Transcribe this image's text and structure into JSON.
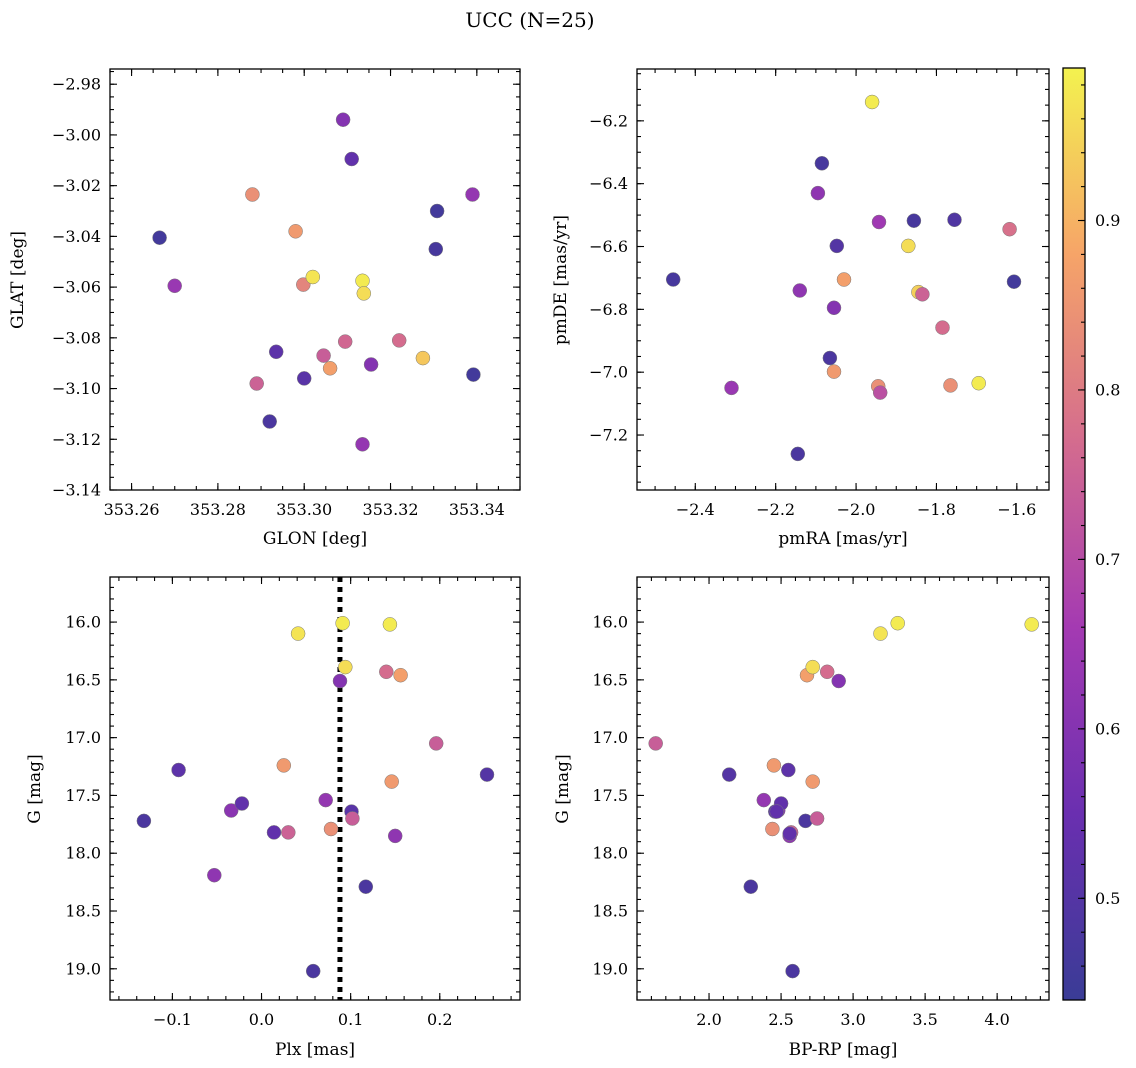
{
  "figure": {
    "title": "UCC (N=25)"
  },
  "chart_data": [
    {
      "type": "scatter",
      "panel": "top-left",
      "xlabel": "GLON [deg]",
      "ylabel": "GLAT [deg]",
      "xlim": [
        353.255,
        353.35
      ],
      "ylim": [
        -3.14,
        -2.974
      ],
      "xticks": [
        353.26,
        353.28,
        353.3,
        353.32,
        353.34
      ],
      "xtick_labels": [
        "353.26",
        "353.28",
        "353.30",
        "353.32",
        "353.34"
      ],
      "yticks": [
        -3.14,
        -3.12,
        -3.1,
        -3.08,
        -3.06,
        -3.04,
        -3.02,
        -3.0,
        -2.98
      ],
      "ytick_labels": [
        "−3.14",
        "−3.12",
        "−3.10",
        "−3.08",
        "−3.06",
        "−3.04",
        "−3.02",
        "−3.00",
        "−2.98"
      ],
      "x_minor": 0.005,
      "y_minor": 0.005,
      "points": [
        {
          "x": 353.2665,
          "y": -3.0405,
          "c": 0.46
        },
        {
          "x": 353.27,
          "y": -3.0595,
          "c": 0.64
        },
        {
          "x": 353.288,
          "y": -3.0235,
          "c": 0.84
        },
        {
          "x": 353.289,
          "y": -3.098,
          "c": 0.75
        },
        {
          "x": 353.292,
          "y": -3.113,
          "c": 0.48
        },
        {
          "x": 353.2935,
          "y": -3.0855,
          "c": 0.52
        },
        {
          "x": 353.298,
          "y": -3.038,
          "c": 0.86
        },
        {
          "x": 353.2998,
          "y": -3.059,
          "c": 0.82
        },
        {
          "x": 353.3,
          "y": -3.096,
          "c": 0.51
        },
        {
          "x": 353.302,
          "y": -3.056,
          "c": 0.97
        },
        {
          "x": 353.3045,
          "y": -3.087,
          "c": 0.74
        },
        {
          "x": 353.306,
          "y": -3.092,
          "c": 0.87
        },
        {
          "x": 353.309,
          "y": -2.994,
          "c": 0.6
        },
        {
          "x": 353.3095,
          "y": -3.0815,
          "c": 0.76
        },
        {
          "x": 353.311,
          "y": -3.0095,
          "c": 0.53
        },
        {
          "x": 353.3135,
          "y": -3.0575,
          "c": 0.98
        },
        {
          "x": 353.3138,
          "y": -3.0625,
          "c": 0.96
        },
        {
          "x": 353.3135,
          "y": -3.122,
          "c": 0.63
        },
        {
          "x": 353.3155,
          "y": -3.0905,
          "c": 0.6
        },
        {
          "x": 353.322,
          "y": -3.081,
          "c": 0.77
        },
        {
          "x": 353.3275,
          "y": -3.088,
          "c": 0.93
        },
        {
          "x": 353.3305,
          "y": -3.045,
          "c": 0.47
        },
        {
          "x": 353.3308,
          "y": -3.03,
          "c": 0.46
        },
        {
          "x": 353.339,
          "y": -3.0235,
          "c": 0.63
        },
        {
          "x": 353.3392,
          "y": -3.0945,
          "c": 0.46
        }
      ]
    },
    {
      "type": "scatter",
      "panel": "top-right",
      "xlabel": "pmRA [mas/yr]",
      "ylabel": "pmDE [mas/yr]",
      "xlim": [
        -2.545,
        -1.52
      ],
      "ylim": [
        -7.375,
        -6.035
      ],
      "xticks": [
        -2.4,
        -2.2,
        -2.0,
        -1.8,
        -1.6
      ],
      "xtick_labels": [
        "−2.4",
        "−2.2",
        "−2.0",
        "−1.8",
        "−1.6"
      ],
      "yticks": [
        -7.2,
        -7.0,
        -6.8,
        -6.6,
        -6.4,
        -6.2
      ],
      "ytick_labels": [
        "−7.2",
        "−7.0",
        "−6.8",
        "−6.6",
        "−6.4",
        "−6.2"
      ],
      "x_minor": 0.05,
      "y_minor": 0.05,
      "points": [
        {
          "x": -2.455,
          "y": -6.705,
          "c": 0.47
        },
        {
          "x": -2.31,
          "y": -7.05,
          "c": 0.64
        },
        {
          "x": -2.145,
          "y": -7.26,
          "c": 0.48
        },
        {
          "x": -2.14,
          "y": -6.74,
          "c": 0.62
        },
        {
          "x": -2.095,
          "y": -6.43,
          "c": 0.62
        },
        {
          "x": -2.085,
          "y": -6.335,
          "c": 0.47
        },
        {
          "x": -2.065,
          "y": -6.955,
          "c": 0.48
        },
        {
          "x": -2.055,
          "y": -6.998,
          "c": 0.86
        },
        {
          "x": -2.055,
          "y": -6.795,
          "c": 0.6
        },
        {
          "x": -2.048,
          "y": -6.598,
          "c": 0.5
        },
        {
          "x": -2.03,
          "y": -6.705,
          "c": 0.87
        },
        {
          "x": -1.96,
          "y": -6.14,
          "c": 0.98
        },
        {
          "x": -1.945,
          "y": -7.045,
          "c": 0.84
        },
        {
          "x": -1.943,
          "y": -6.522,
          "c": 0.65
        },
        {
          "x": -1.94,
          "y": -7.065,
          "c": 0.71
        },
        {
          "x": -1.87,
          "y": -6.598,
          "c": 0.96
        },
        {
          "x": -1.856,
          "y": -6.518,
          "c": 0.47
        },
        {
          "x": -1.845,
          "y": -6.745,
          "c": 0.94
        },
        {
          "x": -1.835,
          "y": -6.752,
          "c": 0.75
        },
        {
          "x": -1.785,
          "y": -6.858,
          "c": 0.77
        },
        {
          "x": -1.765,
          "y": -7.042,
          "c": 0.84
        },
        {
          "x": -1.755,
          "y": -6.515,
          "c": 0.49
        },
        {
          "x": -1.695,
          "y": -7.035,
          "c": 0.98
        },
        {
          "x": -1.618,
          "y": -6.545,
          "c": 0.78
        },
        {
          "x": -1.607,
          "y": -6.712,
          "c": 0.46
        }
      ]
    },
    {
      "type": "scatter",
      "panel": "bottom-left",
      "xlabel": "Plx [mas]",
      "ylabel": "G [mag]",
      "xlim": [
        -0.17,
        0.29
      ],
      "ylim": [
        19.27,
        15.61
      ],
      "xticks": [
        -0.1,
        0.0,
        0.1,
        0.2
      ],
      "xtick_labels": [
        "−0.1",
        "0.0",
        "0.1",
        "0.2"
      ],
      "yticks": [
        16.0,
        16.5,
        17.0,
        17.5,
        18.0,
        18.5,
        19.0
      ],
      "ytick_labels": [
        "16.0",
        "16.5",
        "17.0",
        "17.5",
        "18.0",
        "18.5",
        "19.0"
      ],
      "x_minor": 0.02,
      "y_minor": 0.1,
      "vline": {
        "x": 0.088,
        "style": "dotted"
      },
      "points": [
        {
          "x": -0.132,
          "y": 17.72,
          "c": 0.48
        },
        {
          "x": -0.093,
          "y": 17.28,
          "c": 0.52
        },
        {
          "x": -0.053,
          "y": 18.19,
          "c": 0.62
        },
        {
          "x": -0.034,
          "y": 17.63,
          "c": 0.61
        },
        {
          "x": -0.022,
          "y": 17.57,
          "c": 0.53
        },
        {
          "x": 0.014,
          "y": 17.82,
          "c": 0.53
        },
        {
          "x": 0.025,
          "y": 17.24,
          "c": 0.86
        },
        {
          "x": 0.03,
          "y": 17.82,
          "c": 0.75
        },
        {
          "x": 0.041,
          "y": 16.1,
          "c": 0.97
        },
        {
          "x": 0.058,
          "y": 19.02,
          "c": 0.48
        },
        {
          "x": 0.072,
          "y": 17.54,
          "c": 0.63
        },
        {
          "x": 0.078,
          "y": 17.79,
          "c": 0.84
        },
        {
          "x": 0.088,
          "y": 16.51,
          "c": 0.6
        },
        {
          "x": 0.091,
          "y": 16.01,
          "c": 0.98
        },
        {
          "x": 0.094,
          "y": 16.39,
          "c": 0.96
        },
        {
          "x": 0.101,
          "y": 17.64,
          "c": 0.51
        },
        {
          "x": 0.102,
          "y": 17.7,
          "c": 0.74
        },
        {
          "x": 0.117,
          "y": 18.29,
          "c": 0.48
        },
        {
          "x": 0.14,
          "y": 16.43,
          "c": 0.77
        },
        {
          "x": 0.144,
          "y": 16.02,
          "c": 0.98
        },
        {
          "x": 0.146,
          "y": 17.38,
          "c": 0.86
        },
        {
          "x": 0.15,
          "y": 17.85,
          "c": 0.62
        },
        {
          "x": 0.156,
          "y": 16.46,
          "c": 0.87
        },
        {
          "x": 0.196,
          "y": 17.05,
          "c": 0.74
        },
        {
          "x": 0.253,
          "y": 17.32,
          "c": 0.5
        }
      ]
    },
    {
      "type": "scatter",
      "panel": "bottom-right",
      "xlabel": "BP-RP [mag]",
      "ylabel": "G [mag]",
      "xlim": [
        1.5,
        4.36
      ],
      "ylim": [
        19.27,
        15.61
      ],
      "xticks": [
        2.0,
        2.5,
        3.0,
        3.5,
        4.0
      ],
      "xtick_labels": [
        "2.0",
        "2.5",
        "3.0",
        "3.5",
        "4.0"
      ],
      "yticks": [
        16.0,
        16.5,
        17.0,
        17.5,
        18.0,
        18.5,
        19.0
      ],
      "ytick_labels": [
        "16.0",
        "16.5",
        "17.0",
        "17.5",
        "18.0",
        "18.5",
        "19.0"
      ],
      "x_minor": 0.1,
      "y_minor": 0.1,
      "points": [
        {
          "x": 1.63,
          "y": 17.05,
          "c": 0.74
        },
        {
          "x": 2.14,
          "y": 17.32,
          "c": 0.5
        },
        {
          "x": 2.29,
          "y": 18.29,
          "c": 0.48
        },
        {
          "x": 2.38,
          "y": 17.54,
          "c": 0.63
        },
        {
          "x": 2.44,
          "y": 17.79,
          "c": 0.84
        },
        {
          "x": 2.45,
          "y": 17.24,
          "c": 0.86
        },
        {
          "x": 2.46,
          "y": 17.64,
          "c": 0.51
        },
        {
          "x": 2.48,
          "y": 17.63,
          "c": 0.61
        },
        {
          "x": 2.5,
          "y": 17.57,
          "c": 0.53
        },
        {
          "x": 2.55,
          "y": 17.28,
          "c": 0.52
        },
        {
          "x": 2.56,
          "y": 17.85,
          "c": 0.62
        },
        {
          "x": 2.57,
          "y": 17.82,
          "c": 0.75
        },
        {
          "x": 2.58,
          "y": 19.02,
          "c": 0.48
        },
        {
          "x": 2.67,
          "y": 17.72,
          "c": 0.48
        },
        {
          "x": 2.68,
          "y": 16.46,
          "c": 0.87
        },
        {
          "x": 2.72,
          "y": 16.39,
          "c": 0.96
        },
        {
          "x": 2.72,
          "y": 17.38,
          "c": 0.86
        },
        {
          "x": 2.75,
          "y": 17.7,
          "c": 0.74
        },
        {
          "x": 2.82,
          "y": 16.43,
          "c": 0.77
        },
        {
          "x": 2.9,
          "y": 16.51,
          "c": 0.6
        },
        {
          "x": 3.19,
          "y": 16.1,
          "c": 0.97
        },
        {
          "x": 3.31,
          "y": 16.01,
          "c": 0.98
        },
        {
          "x": 4.24,
          "y": 16.02,
          "c": 0.98
        },
        {
          "x": 2.47,
          "y": 17.64,
          "c": 0.53
        },
        {
          "x": 2.56,
          "y": 17.83,
          "c": 0.53
        }
      ]
    }
  ],
  "colorbar": {
    "range": [
      0.44,
      0.99
    ],
    "ticks": [
      0.5,
      0.6,
      0.7,
      0.8,
      0.9
    ],
    "tick_labels": [
      "0.5",
      "0.6",
      "0.7",
      "0.8",
      "0.9"
    ],
    "minor": 0.02,
    "colormap": "plasma",
    "colors": [
      "#3a3c96",
      "#6a2fb0",
      "#a43ab2",
      "#d46c8e",
      "#f6a468",
      "#f3f24f"
    ]
  }
}
